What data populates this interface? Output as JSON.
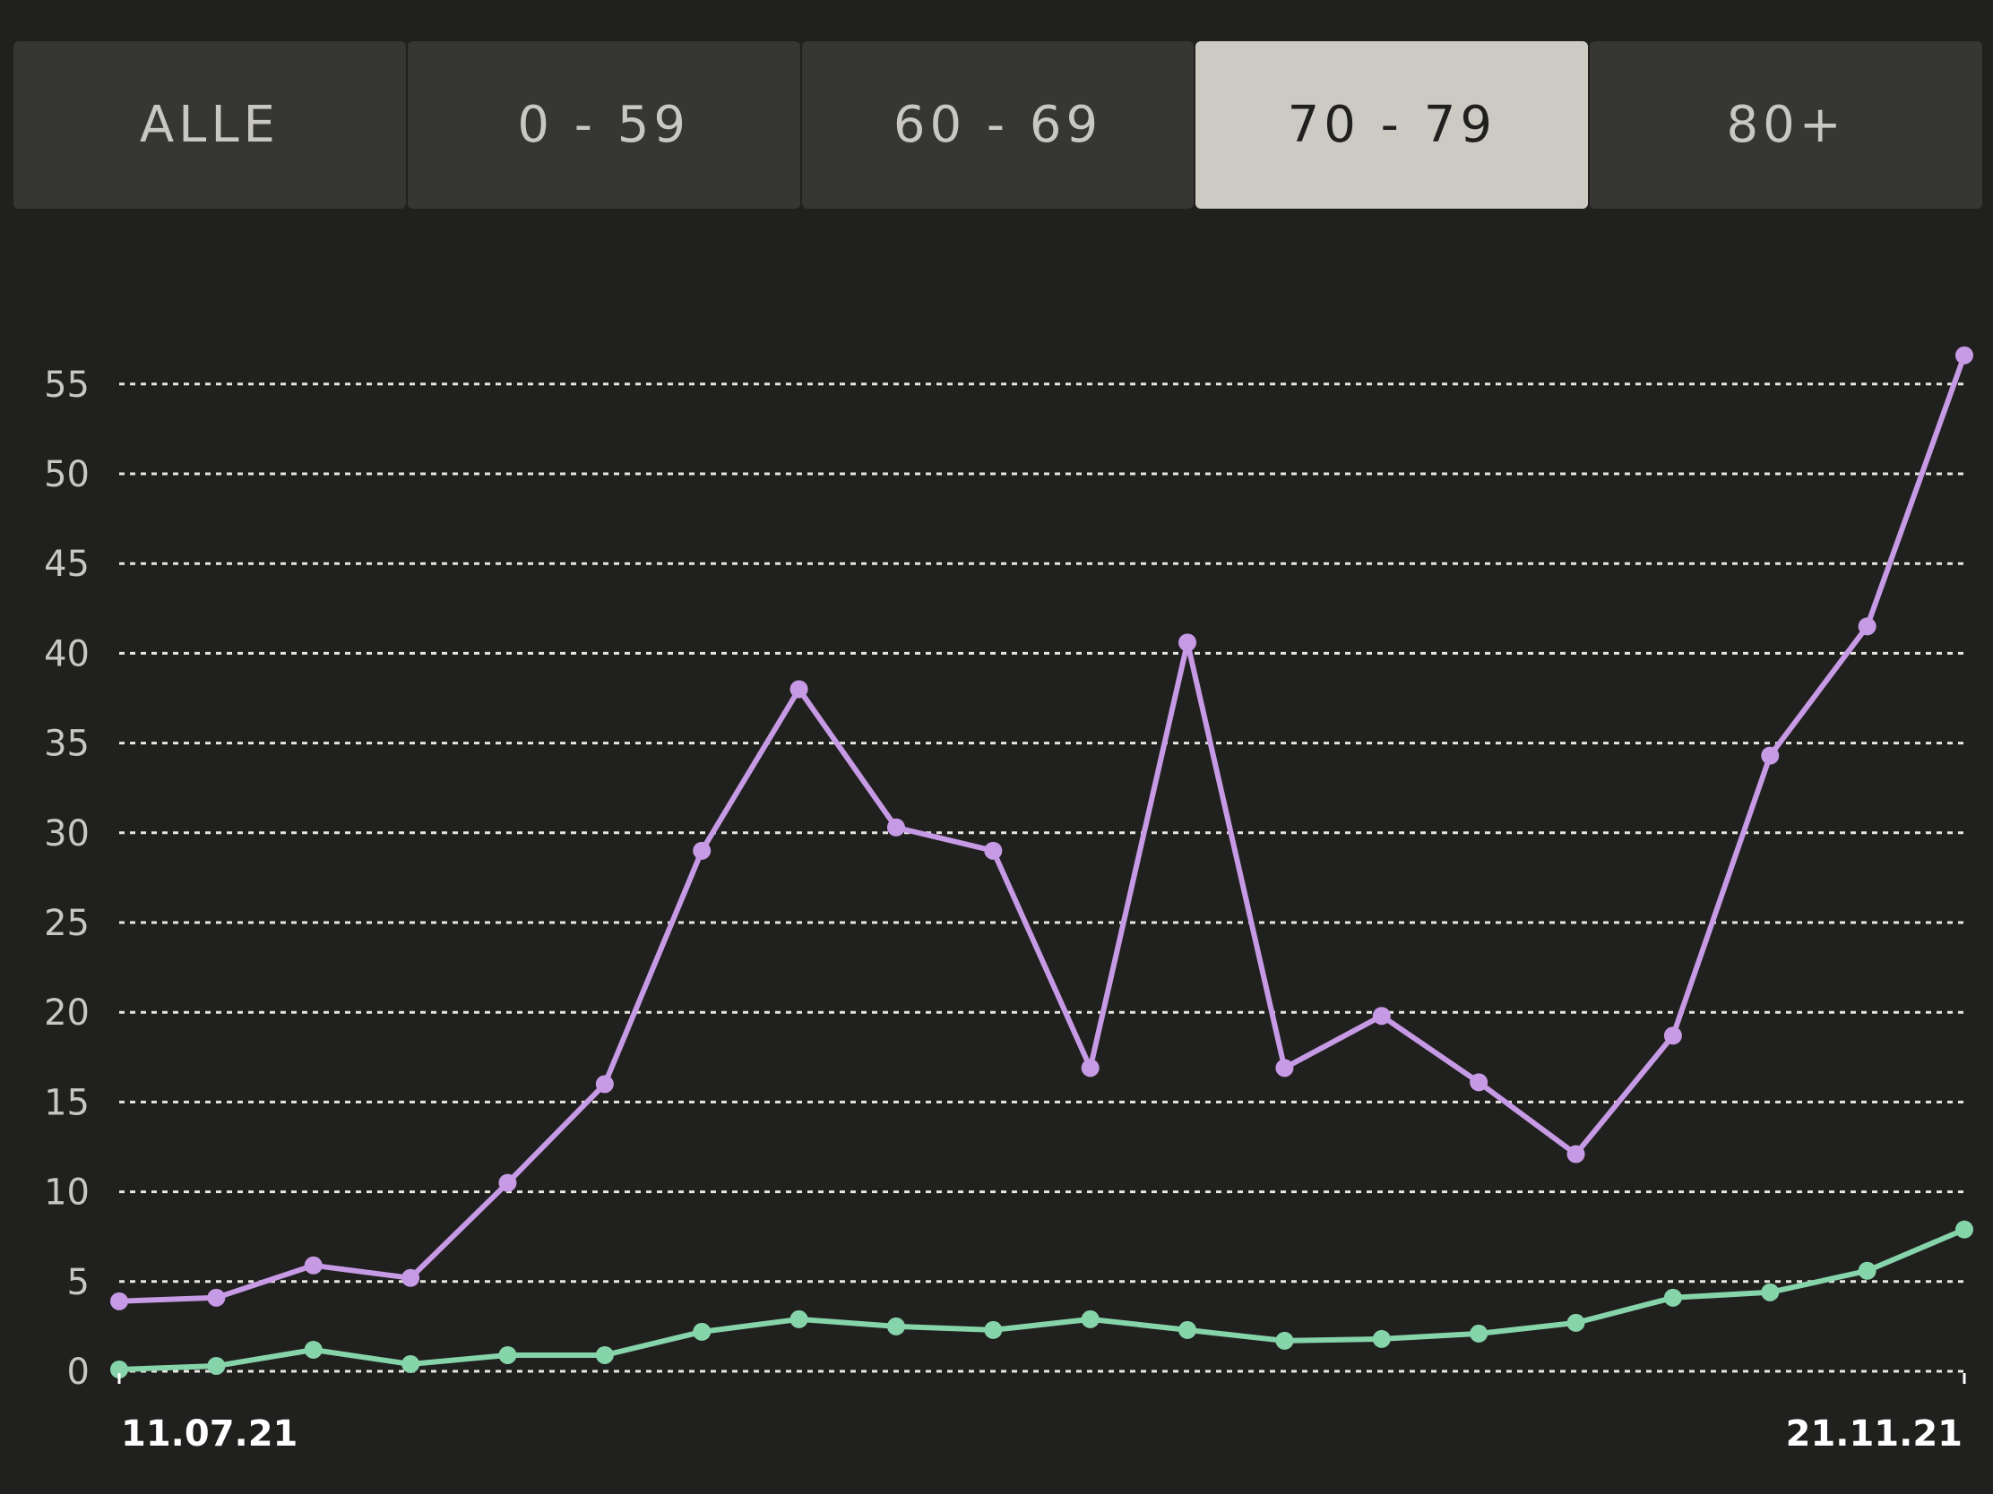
{
  "tabs": [
    {
      "label": "ALLE",
      "active": false
    },
    {
      "label": "0 - 59",
      "active": false
    },
    {
      "label": "60 - 69",
      "active": false
    },
    {
      "label": "70 - 79",
      "active": true
    },
    {
      "label": "80+",
      "active": false
    }
  ],
  "colors": {
    "background": "#20201e",
    "tab": "#363633",
    "tab_active": "#cdcac4",
    "series_purple": "#c79ae6",
    "series_green": "#86d4aa",
    "grid": "#e8e6e0",
    "tick_text": "#c9c7c1"
  },
  "chart_data": {
    "type": "line",
    "xlabel": "",
    "ylabel": "",
    "x_start_label": "11.07.21",
    "x_end_label": "21.11.21",
    "x": [
      "11.07.21",
      "18.07.21",
      "25.07.21",
      "01.08.21",
      "08.08.21",
      "15.08.21",
      "22.08.21",
      "29.08.21",
      "05.09.21",
      "12.09.21",
      "19.09.21",
      "26.09.21",
      "03.10.21",
      "10.10.21",
      "17.10.21",
      "24.10.21",
      "31.10.21",
      "07.11.21",
      "14.11.21",
      "21.11.21"
    ],
    "y_ticks": [
      0,
      5,
      10,
      15,
      20,
      25,
      30,
      35,
      40,
      45,
      50,
      55
    ],
    "ylim": [
      0,
      57
    ],
    "grid": true,
    "series": [
      {
        "color": "#c79ae6",
        "values": [
          3.9,
          4.1,
          5.9,
          5.2,
          10.5,
          16.0,
          29.0,
          38.0,
          30.3,
          29.0,
          16.9,
          40.6,
          16.9,
          19.8,
          16.1,
          12.1,
          18.7,
          34.3,
          41.5,
          56.6
        ]
      },
      {
        "color": "#86d4aa",
        "values": [
          0.1,
          0.3,
          1.2,
          0.4,
          0.9,
          0.9,
          2.2,
          2.9,
          2.5,
          2.3,
          2.9,
          2.3,
          1.7,
          1.8,
          2.1,
          2.7,
          4.1,
          4.4,
          5.6,
          7.9
        ]
      }
    ]
  }
}
